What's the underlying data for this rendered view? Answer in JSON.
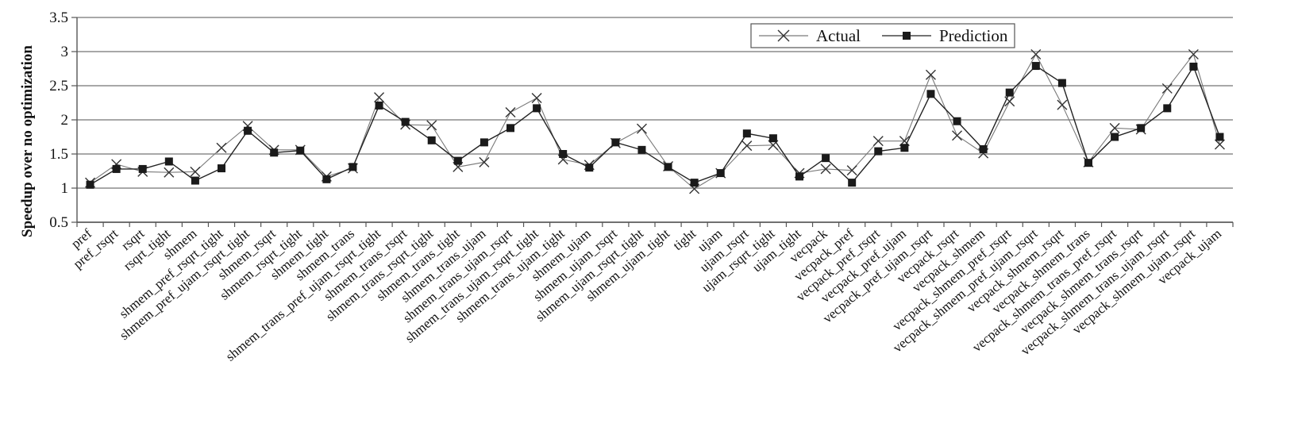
{
  "chart_data": {
    "type": "line",
    "title": "",
    "xlabel": "",
    "ylabel": "Speedup over no optimization",
    "ylim": [
      0.5,
      3.5
    ],
    "yticks": [
      "0.5",
      "1",
      "1.5",
      "2",
      "2.5",
      "3",
      "3.5"
    ],
    "grid": "horizontal",
    "legend_position": "top-right",
    "categories": [
      "pref",
      "pref_rsqrt",
      "rsqrt",
      "rsqrt_tight",
      "shmem",
      "shmem_pref_rsqrt_tight",
      "shmem_pref_ujam_rsqrt_tight",
      "shmem_rsqrt",
      "shmem_rsqrt_tight",
      "shmem_tight",
      "shmem_trans",
      "shmem_trans_pref_ujam_rsqrt_tight",
      "shmem_trans_rsqrt",
      "shmem_trans_rsqrt_tight",
      "shmem_trans_tight",
      "shmem_trans_ujam",
      "shmem_trans_ujam_rsqrt",
      "shmem_trans_ujam_rsqrt_tight",
      "shmem_trans_ujam_tight",
      "shmem_ujam",
      "shmem_ujam_rsqrt",
      "shmem_ujam_rsqrt_tight",
      "shmem_ujam_tight",
      "tight",
      "ujam",
      "ujam_rsqrt",
      "ujam_rsqrt_tight",
      "ujam_tight",
      "vecpack",
      "vecpack_pref",
      "vecpack_pref_rsqrt",
      "vecpack_pref_ujam",
      "vecpack_pref_ujam_rsqrt",
      "vecpack_rsqrt",
      "vecpack_shmem",
      "vecpack_shmem_pref_rsqrt",
      "vecpack_shmem_pref_ujam_rsqrt",
      "vecpack_shmem_rsqrt",
      "vecpack_shmem_trans",
      "vecpack_shmem_trans_pref_rsqrt",
      "vecpack_shmem_trans_rsqrt",
      "vecpack_shmem_trans_ujam_rsqrt",
      "vecpack_shmem_ujam_rsqrt",
      "vecpack_ujam"
    ],
    "series": [
      {
        "name": "Actual",
        "marker": "x",
        "color": "#7a7a7a",
        "values": [
          1.08,
          1.35,
          1.24,
          1.23,
          1.24,
          1.59,
          1.91,
          1.56,
          1.56,
          1.17,
          1.29,
          2.33,
          1.93,
          1.92,
          1.31,
          1.38,
          2.11,
          2.32,
          1.42,
          1.34,
          1.66,
          1.87,
          1.32,
          0.99,
          1.22,
          1.62,
          1.63,
          1.22,
          1.28,
          1.26,
          1.69,
          1.69,
          2.66,
          1.77,
          1.51,
          2.27,
          2.96,
          2.22,
          1.38,
          1.88,
          1.86,
          2.46,
          2.96,
          1.64
        ]
      },
      {
        "name": "Prediction",
        "marker": "square",
        "color": "#222222",
        "values": [
          1.05,
          1.28,
          1.28,
          1.39,
          1.11,
          1.29,
          1.84,
          1.52,
          1.55,
          1.13,
          1.31,
          2.21,
          1.97,
          1.7,
          1.4,
          1.67,
          1.88,
          2.17,
          1.5,
          1.3,
          1.67,
          1.56,
          1.31,
          1.08,
          1.22,
          1.8,
          1.73,
          1.17,
          1.44,
          1.08,
          1.54,
          1.59,
          2.38,
          1.98,
          1.57,
          2.4,
          2.79,
          2.54,
          1.37,
          1.75,
          1.88,
          2.17,
          2.78,
          1.75
        ]
      }
    ]
  }
}
